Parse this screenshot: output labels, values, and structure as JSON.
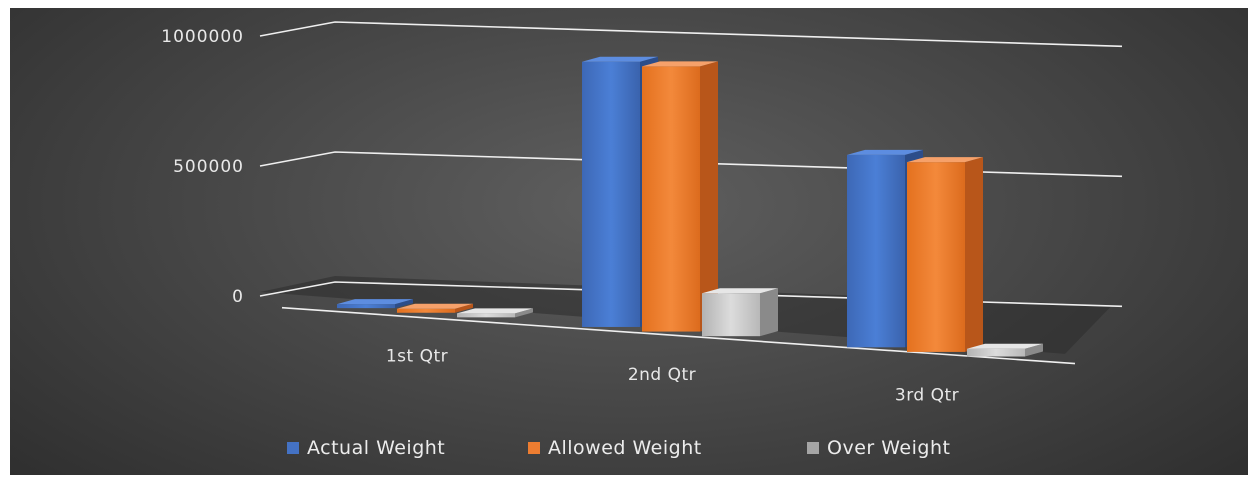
{
  "chart_data": {
    "type": "bar",
    "subtype": "3d-clustered-column",
    "categories": [
      "1st Qtr",
      "2nd Qtr",
      "3rd Qtr"
    ],
    "series": [
      {
        "name": "Actual Weight",
        "color": "#4472C4",
        "values": [
          2000,
          1020000,
          740000
        ]
      },
      {
        "name": "Allowed Weight",
        "color": "#ED7D31",
        "values": [
          1500,
          1020000,
          730000
        ]
      },
      {
        "name": "Over Weight",
        "color": "#A5A5A5",
        "values": [
          500,
          165000,
          30000
        ]
      }
    ],
    "y_ticks": [
      "0",
      "500000",
      "1000000"
    ],
    "ylim": [
      0,
      1000000
    ],
    "grid": true,
    "legend_position": "bottom",
    "background": "#3c3c3c"
  }
}
